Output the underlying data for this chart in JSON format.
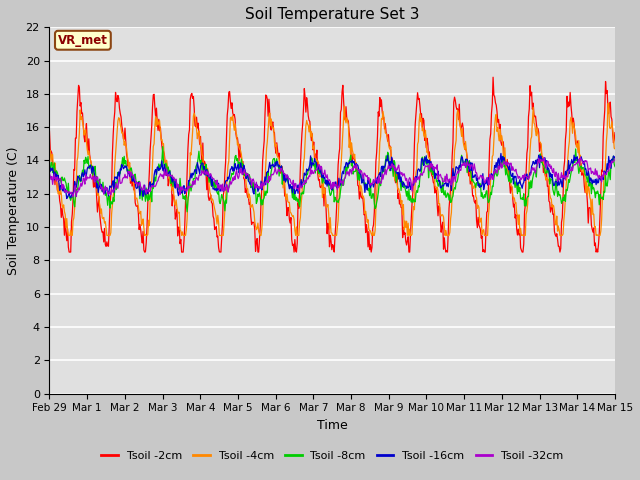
{
  "title": "Soil Temperature Set 3",
  "xlabel": "Time",
  "ylabel": "Soil Temperature (C)",
  "ylim": [
    0,
    22
  ],
  "yticks": [
    0,
    2,
    4,
    6,
    8,
    10,
    12,
    14,
    16,
    18,
    20,
    22
  ],
  "fig_bg_color": "#c8c8c8",
  "plot_bg_color": "#e0e0e0",
  "series_colors": {
    "Tsoil -2cm": "#ff0000",
    "Tsoil -4cm": "#ff8800",
    "Tsoil -8cm": "#00cc00",
    "Tsoil -16cm": "#0000cc",
    "Tsoil -32cm": "#aa00cc"
  },
  "annotation_text": "VR_met",
  "x_tick_labels": [
    "Feb 29",
    "Mar 1",
    "Mar 2",
    "Mar 3",
    "Mar 4",
    "Mar 5",
    "Mar 6",
    "Mar 7",
    "Mar 8",
    "Mar 9",
    "Mar 10",
    "Mar 11",
    "Mar 12",
    "Mar 13",
    "Mar 14",
    "Mar 15"
  ],
  "days": 15,
  "points_per_day": 48
}
